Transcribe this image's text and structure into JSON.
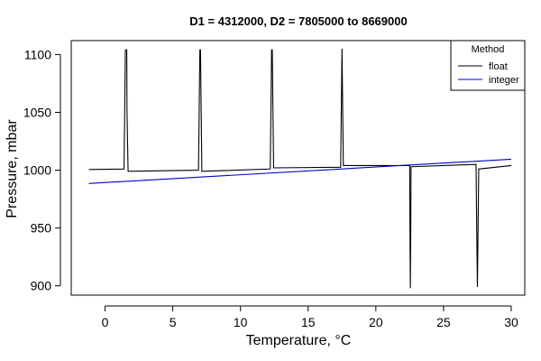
{
  "chart_data": {
    "type": "line",
    "title": "D1 = 4312000, D2 = 7805000 to 8669000",
    "xlabel": "Temperature, °C",
    "ylabel": "Pressure, mbar",
    "xlim": [
      -2.5,
      31
    ],
    "ylim": [
      892,
      1112
    ],
    "xticks": [
      0,
      5,
      10,
      15,
      20,
      25,
      30
    ],
    "yticks": [
      900,
      950,
      1000,
      1050,
      1100
    ],
    "grid": false,
    "legend": {
      "title": "Method",
      "position": "top-right"
    },
    "series": [
      {
        "name": "float",
        "color": "#000000",
        "points": [
          [
            -1.2,
            1000.6
          ],
          [
            1.4,
            1001.0
          ],
          [
            1.45,
            1050
          ],
          [
            1.5,
            1104
          ],
          [
            1.6,
            1104
          ],
          [
            1.62,
            1050
          ],
          [
            1.7,
            999
          ],
          [
            6.9,
            1000.0
          ],
          [
            6.95,
            1050
          ],
          [
            7.0,
            1104
          ],
          [
            7.05,
            1104
          ],
          [
            7.1,
            1050
          ],
          [
            7.15,
            999
          ],
          [
            12.2,
            1001.0
          ],
          [
            12.25,
            1050
          ],
          [
            12.3,
            1104
          ],
          [
            12.35,
            1104
          ],
          [
            12.4,
            1050
          ],
          [
            12.45,
            1002
          ],
          [
            17.4,
            1002.5
          ],
          [
            17.45,
            1053
          ],
          [
            17.5,
            1105
          ],
          [
            17.55,
            1053
          ],
          [
            17.6,
            1004
          ],
          [
            22.5,
            1004
          ],
          [
            22.52,
            950
          ],
          [
            22.55,
            898
          ],
          [
            22.58,
            950
          ],
          [
            22.6,
            1003
          ],
          [
            27.4,
            1005
          ],
          [
            27.45,
            950
          ],
          [
            27.5,
            899
          ],
          [
            27.55,
            950
          ],
          [
            27.6,
            1001
          ],
          [
            30.0,
            1004
          ]
        ]
      },
      {
        "name": "integer",
        "color": "#0000cc",
        "points": [
          [
            -1.2,
            988.5
          ],
          [
            30.0,
            1009.5
          ]
        ]
      }
    ]
  }
}
